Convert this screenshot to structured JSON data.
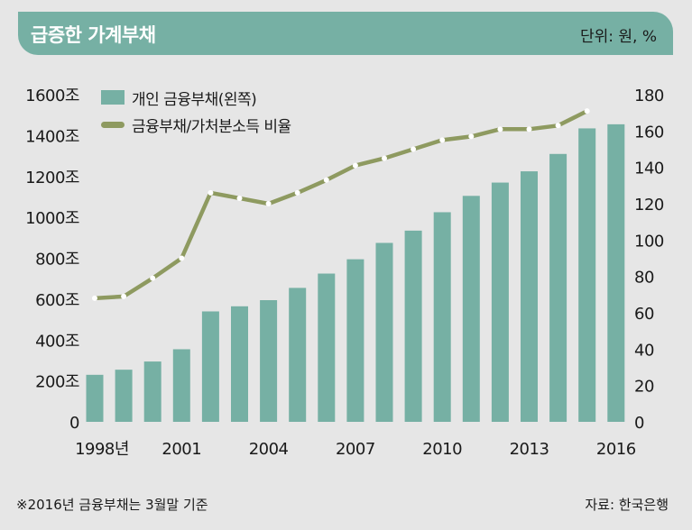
{
  "header": {
    "title": "급증한 가계부채",
    "unit": "단위: 원, %"
  },
  "legend": {
    "bar_label": "개인 금융부채(왼쪽)",
    "line_label": "금융부채/가처분소득 비율"
  },
  "footnote": "※2016년 금융부채는 3월말 기준",
  "source": "자료: 한국은행",
  "colors": {
    "bar": "#76b0a4",
    "line": "#8e9a60",
    "background": "#e6e6e6",
    "header": "#76b0a4"
  },
  "chart_data": {
    "type": "bar+line",
    "x": [
      1998,
      1999,
      2000,
      2001,
      2002,
      2003,
      2004,
      2005,
      2006,
      2007,
      2008,
      2009,
      2010,
      2011,
      2012,
      2013,
      2014,
      2015,
      2016
    ],
    "x_tick_labels": [
      "1998년",
      "2001",
      "2004",
      "2007",
      "2010",
      "2013",
      "2016"
    ],
    "x_tick_years": [
      1998,
      2001,
      2004,
      2007,
      2010,
      2013,
      2016
    ],
    "left_axis": {
      "ylim": [
        0,
        1600
      ],
      "tick_labels": [
        "0",
        "200조",
        "400조",
        "600조",
        "800조",
        "1000조",
        "1200조",
        "1400조",
        "1600조"
      ]
    },
    "right_axis": {
      "ylim": [
        0,
        180
      ],
      "tick_labels": [
        "0",
        "20",
        "40",
        "60",
        "80",
        "100",
        "120",
        "140",
        "160",
        "180"
      ]
    },
    "series": [
      {
        "name": "개인 금융부채(왼쪽)",
        "kind": "bar",
        "axis": "left",
        "x": [
          1998,
          1999,
          2000,
          2001,
          2002,
          2003,
          2004,
          2005,
          2006,
          2007,
          2008,
          2009,
          2010,
          2011,
          2012,
          2013,
          2014,
          2015,
          2016
        ],
        "values": [
          230,
          255,
          295,
          355,
          540,
          565,
          595,
          655,
          725,
          795,
          875,
          935,
          1025,
          1105,
          1170,
          1225,
          1310,
          1435,
          1455
        ]
      },
      {
        "name": "금융부채/가처분소득 비율",
        "kind": "line",
        "axis": "right",
        "x": [
          1998,
          1999,
          2000,
          2001,
          2002,
          2003,
          2004,
          2005,
          2006,
          2007,
          2008,
          2009,
          2010,
          2011,
          2012,
          2013,
          2014,
          2015
        ],
        "values": [
          68,
          69,
          79,
          90,
          126,
          123,
          120,
          126,
          133,
          141,
          145,
          150,
          155,
          157,
          161,
          161,
          163,
          171
        ]
      }
    ]
  }
}
